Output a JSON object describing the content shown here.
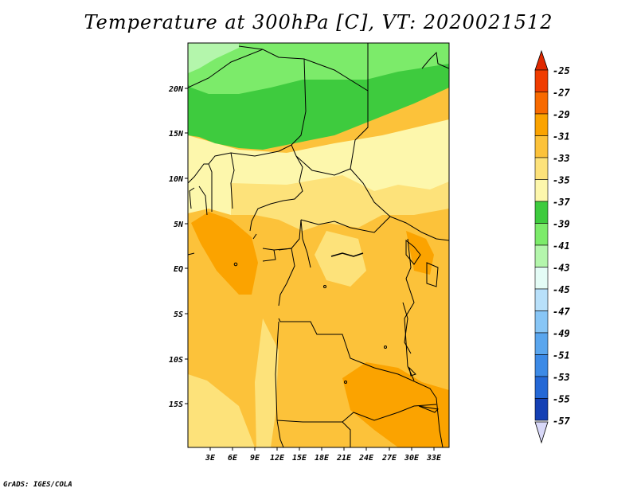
{
  "title": "Temperature at 300hPa [C], VT: 2020021512",
  "credit": "GrADS: IGES/COLA",
  "map": {
    "lat_ticks": [
      "20N",
      "15N",
      "10N",
      "5N",
      "EQ",
      "5S",
      "10S",
      "15S"
    ],
    "lon_ticks": [
      "3E",
      "6E",
      "9E",
      "12E",
      "15E",
      "18E",
      "21E",
      "24E",
      "27E",
      "30E",
      "33E"
    ]
  },
  "legend": {
    "labels": [
      "-25",
      "-27",
      "-29",
      "-31",
      "-33",
      "-35",
      "-37",
      "-39",
      "-41",
      "-43",
      "-45",
      "-47",
      "-49",
      "-51",
      "-53",
      "-55",
      "-57"
    ],
    "colors": [
      "#f03c00",
      "#f86a00",
      "#fba300",
      "#fcc23a",
      "#fde27a",
      "#fdf7ac",
      "#3ecb3e",
      "#7ceb6a",
      "#b4f6ac",
      "#e4fcf6",
      "#b8e0fa",
      "#88c6f6",
      "#5aa6ee",
      "#3c8ae6",
      "#2468d6",
      "#1440b4",
      "#0a0a7a"
    ],
    "top_arrow_color": "#e02800",
    "bottom_arrow_color": "#d8d8f8"
  }
}
